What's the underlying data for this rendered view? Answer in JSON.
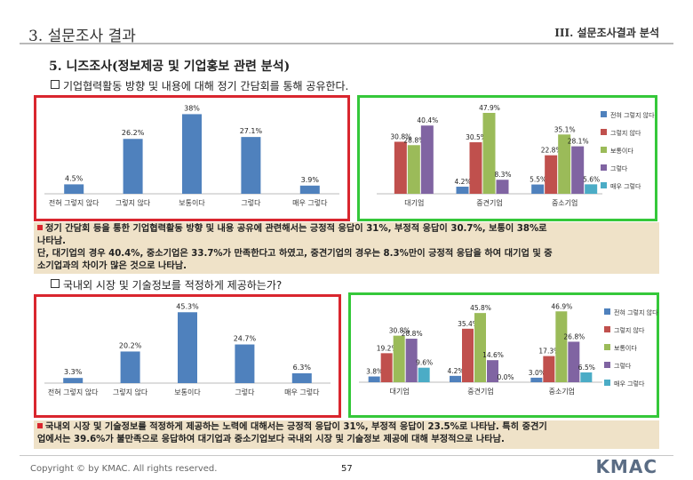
{
  "header": {
    "section": "3. 설문조사 결과",
    "chapter": "III. 설문조사결과 분석"
  },
  "section_title": "5. 니즈조사(정보제공 및 기업홍보 관련 분석)",
  "q1": "기업협력활동 방향 및 내용에 대해 정기 간담회를 통해 공유한다.",
  "q2": "국내외 시장 및 기술정보를 적정하게 제공하는가?",
  "note1": {
    "line1": "정기 간담회 등을 통한 기업협력활동 방향 및 내용 공유에 관련해서는 긍정적 응답이 31%, 부정적 응답이 30.7%, 보통이 38%로",
    "line2": "나타남.",
    "line3": "단, 대기업의 경우 40.4%, 중소기업은 33.7%가 만족한다고 하였고, 중견기업의 경우는 8.3%만이 긍정적 응답을 하여 대기업 및 중",
    "line4": "소기업과의 차이가 많은 것으로 나타남."
  },
  "note2": {
    "line1": "국내외 시장 및 기술정보를 적정하게 제공하는 노력에 대해서는 긍정적 응답이 31%, 부정적 응답이 23.5%로 나타남. 특히 중견기",
    "line2": "업에서는 39.6%가 불만족으로 응답하여 대기업과 중소기업보다 국내외 시장 및 기술정보 제공에 대해 부정적으로 나타남."
  },
  "footer": {
    "copyright": "Copyright © by KMAC. All rights reserved.",
    "page": "57",
    "logo": "KMAC"
  },
  "colors": {
    "overall": "#4f81bd",
    "s1": "#4f81bd",
    "s2": "#c0504d",
    "s3": "#9bbb59",
    "s4": "#8064a2",
    "s5": "#4bacc6"
  },
  "chart_data": [
    {
      "id": "q1_overall",
      "type": "bar",
      "categories": [
        "전혀 그렇지 않다",
        "그렇지 않다",
        "보통이다",
        "그렇다",
        "매우 그렇다"
      ],
      "values": [
        4.5,
        26.2,
        38,
        27.1,
        3.9
      ],
      "labels": [
        "4.5%",
        "26.2%",
        "38%",
        "27.1%",
        "3.9%"
      ],
      "ylim": [
        0,
        42
      ]
    },
    {
      "id": "q1_by_size",
      "type": "bar",
      "categories": [
        "대기업",
        "중견기업",
        "중소기업"
      ],
      "series": [
        {
          "name": "전혀 그렇지 않다",
          "values": [
            null,
            4.2,
            5.5
          ],
          "labels": [
            "",
            "4.2%",
            "5.5%"
          ]
        },
        {
          "name": "그렇지 않다",
          "values": [
            30.8,
            30.5,
            22.8
          ],
          "labels": [
            "30.8%",
            "30.5%",
            "22.8%"
          ]
        },
        {
          "name": "보통이다",
          "values": [
            28.8,
            47.9,
            35.1
          ],
          "labels": [
            "28.8%",
            "47.9%",
            "35.1%"
          ]
        },
        {
          "name": "그렇다",
          "values": [
            40.4,
            8.3,
            28.1
          ],
          "labels": [
            "40.4%",
            "8.3%",
            "28.1%"
          ]
        },
        {
          "name": "매우 그렇다",
          "values": [
            null,
            null,
            5.6
          ],
          "labels": [
            "",
            "",
            "5.6%"
          ]
        }
      ],
      "ylim": [
        0,
        50
      ]
    },
    {
      "id": "q2_overall",
      "type": "bar",
      "categories": [
        "전혀 그렇지 않다",
        "그렇지 않다",
        "보통이다",
        "그렇다",
        "매우 그렇다"
      ],
      "values": [
        3.3,
        20.2,
        45.3,
        24.7,
        6.3
      ],
      "labels": [
        "3.3%",
        "20.2%",
        "45.3%",
        "24.7%",
        "6.3%"
      ],
      "ylim": [
        0,
        50
      ]
    },
    {
      "id": "q2_by_size",
      "type": "bar",
      "categories": [
        "대기업",
        "중견기업",
        "중소기업"
      ],
      "series": [
        {
          "name": "전혀 그렇지 않다",
          "values": [
            3.8,
            4.2,
            3.0
          ],
          "labels": [
            "3.8%",
            "4.2%",
            "3.0%"
          ]
        },
        {
          "name": "그렇지 않다",
          "values": [
            19.2,
            35.4,
            17.3
          ],
          "labels": [
            "19.2%",
            "35.4%",
            "17.3%"
          ]
        },
        {
          "name": "보통이다",
          "values": [
            30.8,
            45.8,
            46.9
          ],
          "labels": [
            "30.8%",
            "45.8%",
            "46.9%"
          ]
        },
        {
          "name": "그렇다",
          "values": [
            28.8,
            14.6,
            26.8
          ],
          "labels": [
            "28.8%",
            "14.6%",
            "26.8%"
          ]
        },
        {
          "name": "매우 그렇다",
          "values": [
            9.6,
            null,
            6.5
          ],
          "labels": [
            "9.6%",
            "0.0%",
            "6.5%"
          ]
        }
      ],
      "ylim": [
        0,
        50
      ]
    }
  ]
}
